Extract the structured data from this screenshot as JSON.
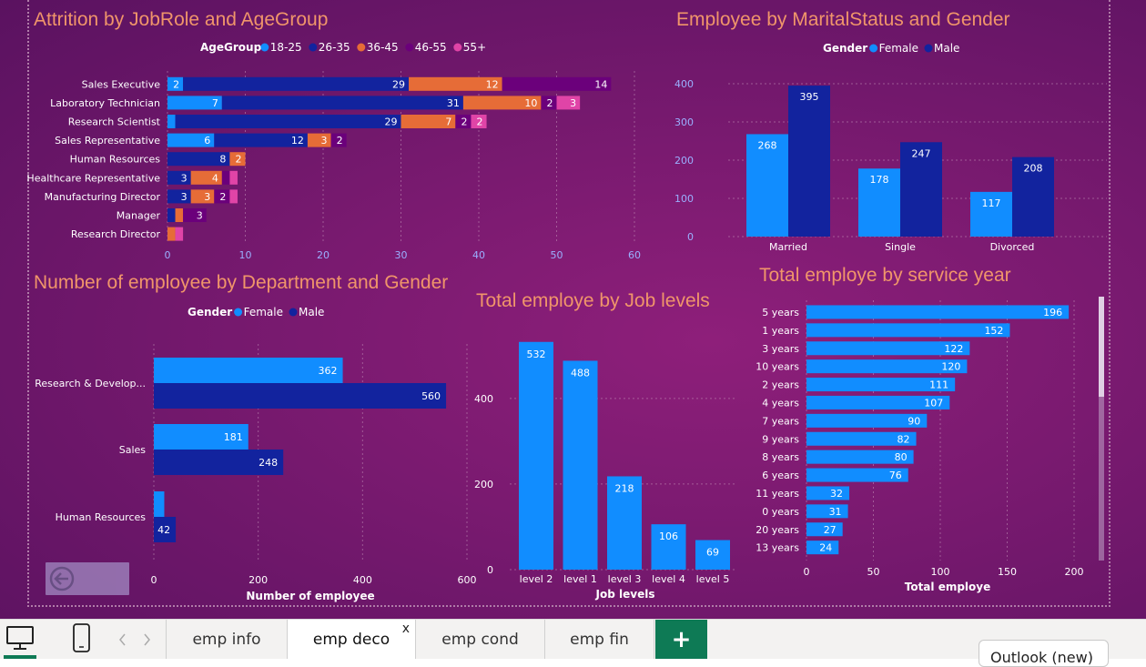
{
  "tabs": {
    "items": [
      "emp info",
      "emp deco",
      "emp cond",
      "emp fin"
    ],
    "active_index": 1,
    "close_glyph": "x",
    "add_glyph": "+",
    "add_color": "#0e7a55",
    "outlook_label": "Outlook (new)"
  },
  "icons": {
    "desktop": "desktop-icon",
    "phone": "phone-icon",
    "prev": "chevron-left-icon",
    "next": "chevron-right-icon",
    "back": "back-arrow-icon"
  },
  "colors": {
    "title": "#f0956a",
    "female": "#118dff",
    "male": "#12239e",
    "age_18_25": "#118dff",
    "age_26_35": "#12239e",
    "age_36_45": "#e66c37",
    "age_46_55": "#6b007b",
    "age_55_plus": "#e044a7"
  },
  "chart_data": [
    {
      "id": "attrition",
      "type": "bar",
      "orientation": "horizontal",
      "stacked": true,
      "title": "Attrition by JobRole and AgeGroup",
      "legend_title": "AgeGroup",
      "categories": [
        "Sales Executive",
        "Laboratory Technician",
        "Research Scientist",
        "Sales Representative",
        "Human Resources",
        "Healthcare Representative",
        "Manufacturing Director",
        "Manager",
        "Research Director"
      ],
      "series": [
        {
          "name": "18-25",
          "values": [
            2,
            7,
            1,
            6,
            0,
            0,
            0,
            0,
            0
          ]
        },
        {
          "name": "26-35",
          "values": [
            29,
            31,
            29,
            12,
            8,
            3,
            3,
            1,
            0
          ]
        },
        {
          "name": "36-45",
          "values": [
            12,
            10,
            7,
            3,
            2,
            4,
            3,
            1,
            1
          ]
        },
        {
          "name": "46-55",
          "values": [
            14,
            2,
            2,
            2,
            0,
            1,
            2,
            3,
            0
          ]
        },
        {
          "name": "55+",
          "values": [
            0,
            3,
            2,
            0,
            0,
            1,
            1,
            0,
            1
          ]
        }
      ],
      "labels": [
        [
          "2",
          "29",
          "12",
          "14",
          ""
        ],
        [
          "7",
          "31",
          "10",
          "2",
          "3"
        ],
        [
          "",
          "29",
          "7",
          "2",
          "2"
        ],
        [
          "6",
          "12",
          "3",
          "2",
          ""
        ],
        [
          "",
          "8",
          "2",
          "",
          ""
        ],
        [
          "",
          "3",
          "4",
          "",
          ""
        ],
        [
          "",
          "3",
          "3",
          "2",
          ""
        ],
        [
          "",
          "",
          "",
          "3",
          ""
        ],
        [
          "",
          "",
          "",
          "",
          ""
        ]
      ],
      "xlim": [
        0,
        60
      ],
      "xticks": [
        "0",
        "10",
        "20",
        "30",
        "40",
        "50",
        "60"
      ],
      "grid": true
    },
    {
      "id": "marital",
      "type": "bar",
      "orientation": "vertical",
      "title": "Employee by MaritalStatus and Gender",
      "legend_title": "Gender",
      "categories": [
        "Married",
        "Single",
        "Divorced"
      ],
      "series": [
        {
          "name": "Female",
          "values": [
            268,
            178,
            117
          ]
        },
        {
          "name": "Male",
          "values": [
            395,
            247,
            208
          ]
        }
      ],
      "ylim": [
        0,
        400
      ],
      "yticks": [
        "0",
        "100",
        "200",
        "300",
        "400"
      ],
      "grid": true
    },
    {
      "id": "department",
      "type": "bar",
      "orientation": "horizontal",
      "title": "Number of employee by Department and Gender",
      "legend_title": "Gender",
      "categories": [
        "Research & Develop...",
        "Sales",
        "Human Resources"
      ],
      "series": [
        {
          "name": "Female",
          "values": [
            362,
            181,
            20
          ]
        },
        {
          "name": "Male",
          "values": [
            560,
            248,
            42
          ]
        }
      ],
      "labels": [
        [
          "362",
          "560"
        ],
        [
          "181",
          "248"
        ],
        [
          "",
          "42"
        ]
      ],
      "xlim": [
        0,
        600
      ],
      "xticks": [
        "0",
        "200",
        "400",
        "600"
      ],
      "xlabel": "Number of employee",
      "grid": true
    },
    {
      "id": "joblevels",
      "type": "bar",
      "orientation": "vertical",
      "title": "Total employe by Job levels",
      "categories": [
        "level 2",
        "level 1",
        "level 3",
        "level 4",
        "level 5"
      ],
      "values": [
        532,
        488,
        218,
        106,
        69
      ],
      "ylim": [
        0,
        540
      ],
      "yticks": [
        "0",
        "200",
        "400"
      ],
      "xlabel": "Job levels",
      "grid": true
    },
    {
      "id": "service",
      "type": "bar",
      "orientation": "horizontal",
      "title": "Total employe by service year",
      "categories": [
        "5 years",
        "1 years",
        "3 years",
        "10 years",
        "2 years",
        "4 years",
        "7 years",
        "9 years",
        "8 years",
        "6 years",
        "11 years",
        "0 years",
        "20 years",
        "13 years"
      ],
      "values": [
        196,
        152,
        122,
        120,
        111,
        107,
        90,
        82,
        80,
        76,
        32,
        31,
        27,
        24
      ],
      "xlim": [
        0,
        200
      ],
      "xticks": [
        "0",
        "50",
        "100",
        "150",
        "200"
      ],
      "xlabel": "Total employe",
      "grid": true
    }
  ]
}
